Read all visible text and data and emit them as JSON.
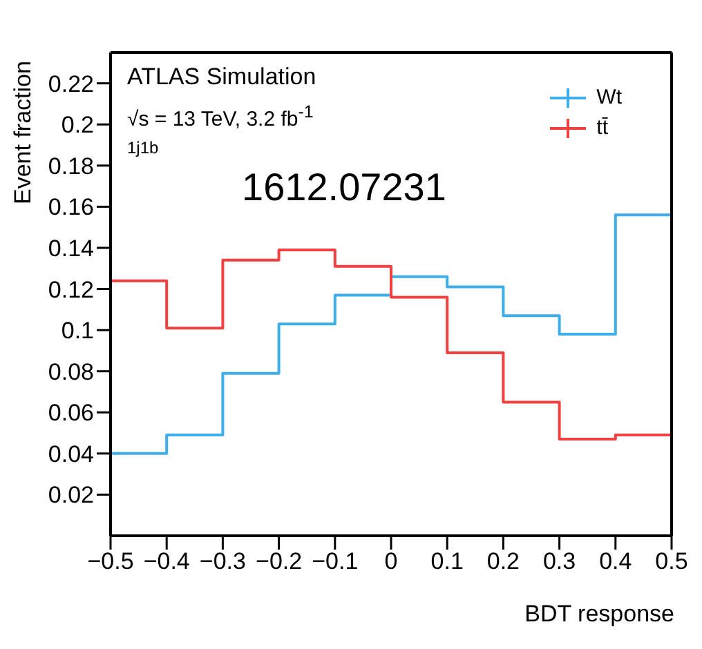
{
  "chart_data": {
    "type": "histogram",
    "xlabel": "BDT response",
    "ylabel": "Event fraction",
    "bins": [
      -0.5,
      -0.4,
      -0.3,
      -0.2,
      -0.1,
      0,
      0.1,
      0.2,
      0.3,
      0.4,
      0.5
    ],
    "series": [
      {
        "name": "Wt",
        "color": "#3daee9",
        "values": [
          0.04,
          0.049,
          0.079,
          0.103,
          0.117,
          0.126,
          0.121,
          0.107,
          0.098,
          0.156
        ]
      },
      {
        "name": "tt̄",
        "color": "#f04040",
        "values": [
          0.124,
          0.101,
          0.134,
          0.139,
          0.131,
          0.116,
          0.089,
          0.065,
          0.047,
          0.049
        ]
      }
    ],
    "xlim": [
      -0.5,
      0.5
    ],
    "xticks": [
      -0.5,
      -0.4,
      -0.3,
      -0.2,
      -0.1,
      0,
      0.1,
      0.2,
      0.3,
      0.4,
      0.5
    ],
    "ylim": [
      0,
      0.235
    ],
    "yticks": [
      0.02,
      0.04,
      0.06,
      0.08,
      0.1,
      0.12,
      0.14,
      0.16,
      0.18,
      0.2,
      0.22
    ],
    "legend": "top right",
    "annotations": [
      "ATLAS Simulation",
      "√s = 13 TeV, 3.2 fb$^{-1}$",
      "1j1b",
      "1612.07231"
    ]
  }
}
